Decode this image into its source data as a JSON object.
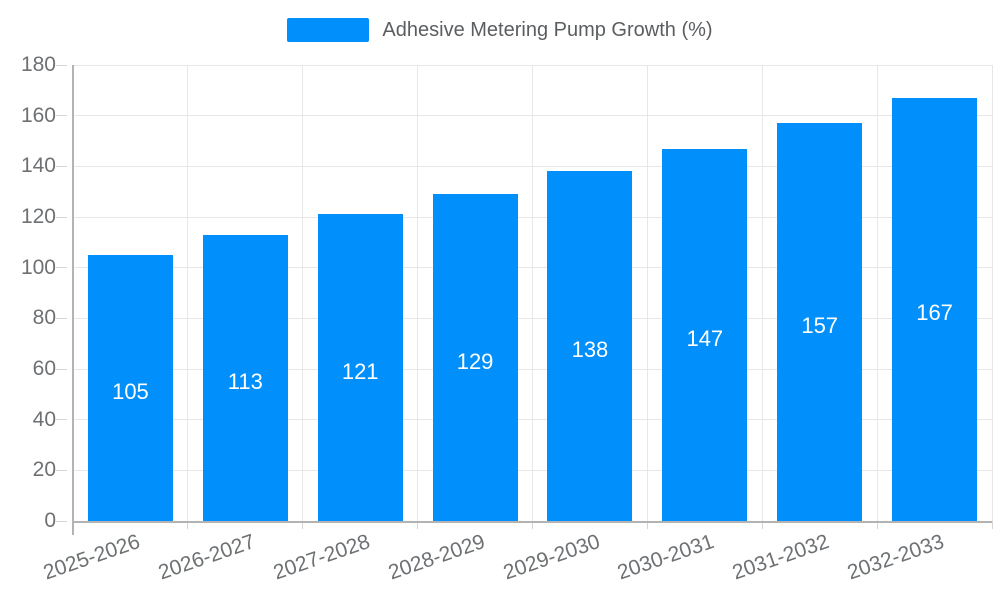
{
  "chart_data": {
    "type": "bar",
    "legend_label": "Adhesive Metering Pump Growth (%)",
    "legend_position": "top",
    "categories": [
      "2025-2026",
      "2026-2027",
      "2027-2028",
      "2028-2029",
      "2029-2030",
      "2030-2031",
      "2031-2032",
      "2032-2033"
    ],
    "values": [
      105,
      113,
      121,
      129,
      138,
      147,
      157,
      167
    ],
    "xlabel": "",
    "ylabel": "",
    "ylim": [
      0,
      180
    ],
    "yticks": [
      0,
      20,
      40,
      60,
      80,
      100,
      120,
      140,
      160,
      180
    ],
    "grid": true,
    "x_label_rotation_deg": -19,
    "colors": {
      "bar": "#008FFB",
      "bar_value_label": "#FFFFFF",
      "axis_label": "#6E7173",
      "legend_label": "#5B5E60",
      "gridline": "#E7E7E7",
      "tick": "#D6D6D6",
      "axis_line": "#B3B3B3"
    }
  }
}
